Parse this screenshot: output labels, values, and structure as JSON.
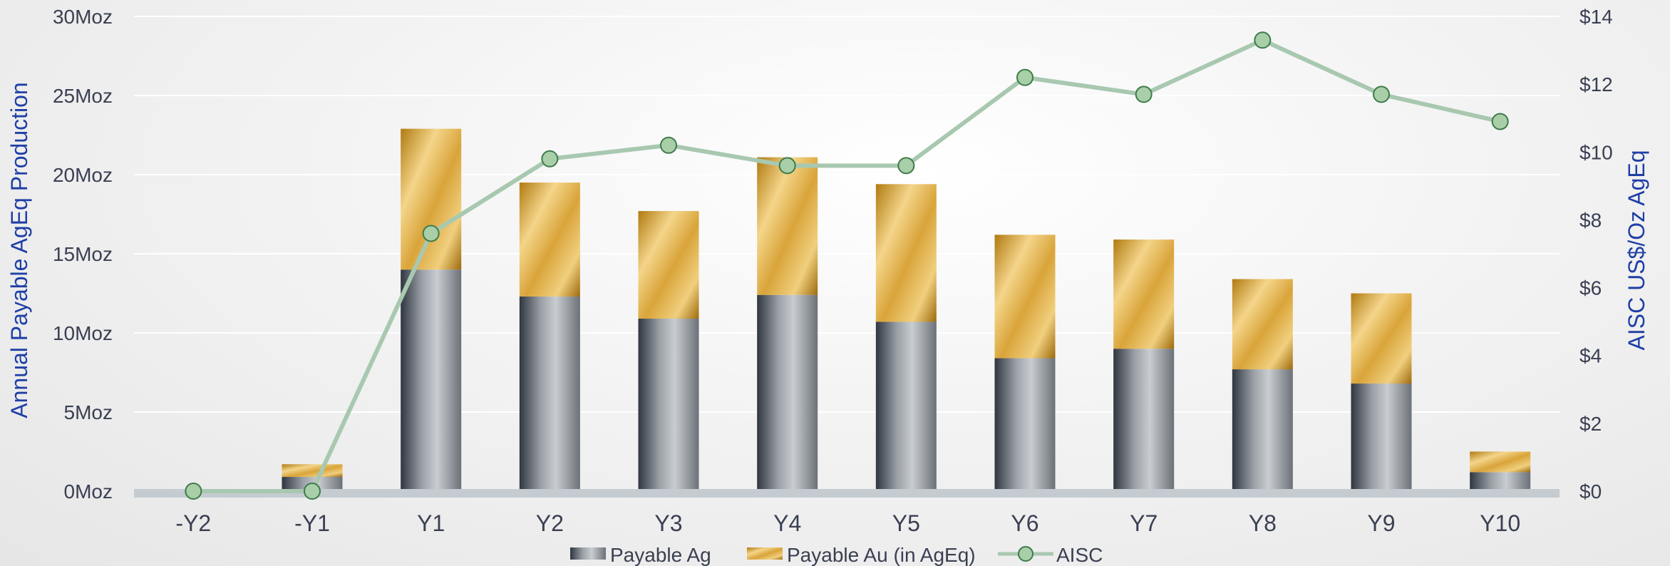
{
  "chart_data": {
    "type": "bar",
    "stacked": true,
    "categories": [
      "-Y2",
      "-Y1",
      "Y1",
      "Y2",
      "Y3",
      "Y4",
      "Y5",
      "Y6",
      "Y7",
      "Y8",
      "Y9",
      "Y10"
    ],
    "series": [
      {
        "name": "Payable Ag",
        "type": "bar",
        "axis": "left",
        "values": [
          0,
          0.9,
          14.0,
          12.3,
          10.9,
          12.4,
          10.7,
          8.4,
          9.0,
          7.7,
          6.8,
          1.2
        ]
      },
      {
        "name": "Payable Au (in AgEq)",
        "type": "bar",
        "axis": "left",
        "values": [
          0,
          0.8,
          8.9,
          7.2,
          6.8,
          8.7,
          8.7,
          7.8,
          6.9,
          5.7,
          5.7,
          1.3
        ]
      },
      {
        "name": "AISC",
        "type": "line",
        "axis": "right",
        "values": [
          0,
          0,
          7.6,
          9.8,
          10.2,
          9.6,
          9.6,
          12.2,
          11.7,
          13.3,
          11.7,
          10.9
        ]
      }
    ],
    "ylabel": "Annual Payable  AgEq Production",
    "y2label": "AISC US$/Oz AgEq",
    "ylim": [
      0,
      30
    ],
    "y2lim": [
      0,
      14
    ],
    "yticks": [
      "0Moz",
      "5Moz",
      "10Moz",
      "15Moz",
      "20Moz",
      "25Moz",
      "30Moz"
    ],
    "y2ticks": [
      "$0",
      "$2",
      "$4",
      "$6",
      "$8",
      "$10",
      "$12",
      "$14"
    ],
    "grid": true,
    "legend": "bottom",
    "colors": {
      "ag_light": "#b8bcc0",
      "ag_dark": "#2f3640",
      "au_light": "#f4d58a",
      "au_dark": "#b07a10",
      "line": "#a8c8b0",
      "marker_fill": "#a8cfa8",
      "marker_stroke": "#3f7a4a",
      "axis_title": "#1f3fa6",
      "baseline": "#c4ccd2"
    }
  }
}
